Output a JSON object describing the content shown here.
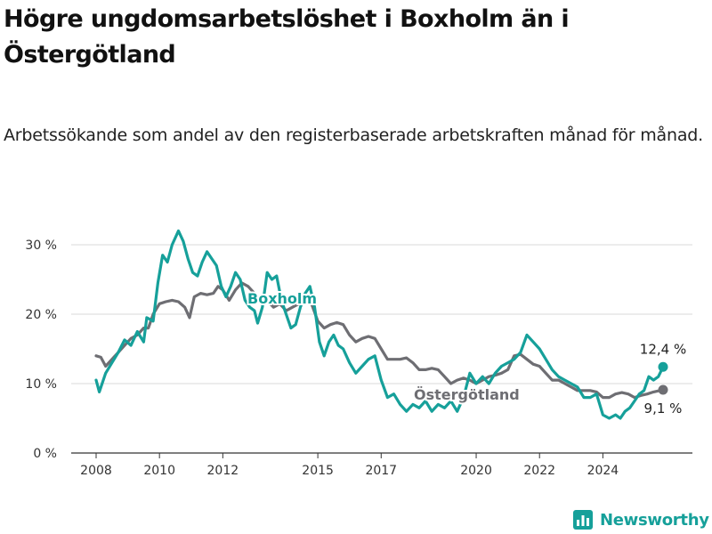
{
  "title": "Högre ungdomsarbetslöshet i Boxholm än i Östergötland",
  "subtitle": "Arbetssökande som andel av den registerbaserade arbetskraften månad för månad.",
  "brand": "Newsworthy",
  "colors": {
    "boxholm": "#16a09a",
    "ostergotland": "#6e6e73",
    "grid": "#d9d9d9",
    "axis": "#333333",
    "brand": "#16a09a"
  },
  "chart_data": {
    "type": "line",
    "title": "Högre ungdomsarbetslöshet i Boxholm än i Östergötland",
    "subtitle": "Arbetssökande som andel av den registerbaserade arbetskraften månad för månad.",
    "xlabel": "",
    "ylabel": "",
    "xlim": [
      2008,
      2025.1
    ],
    "ylim": [
      0,
      32
    ],
    "x_ticks": [
      2008,
      2010,
      2012,
      2015,
      2017,
      2020,
      2022,
      2024
    ],
    "x_tick_labels": [
      "2008",
      "2010",
      "2012",
      "2015",
      "2017",
      "2020",
      "2022",
      "2024"
    ],
    "y_ticks": [
      0,
      10,
      20,
      30
    ],
    "y_tick_labels": [
      "0 %",
      "10 %",
      "20 %",
      "30 %"
    ],
    "grid": "horizontal",
    "legend": "direct labels on lines",
    "series": [
      {
        "name": "Boxholm",
        "color": "#16a09a",
        "end_label": "12,4 %",
        "points": [
          [
            2008.0,
            10.5
          ],
          [
            2008.1,
            8.8
          ],
          [
            2008.3,
            11.5
          ],
          [
            2008.5,
            13.0
          ],
          [
            2008.7,
            14.5
          ],
          [
            2008.9,
            16.3
          ],
          [
            2009.1,
            15.5
          ],
          [
            2009.3,
            17.5
          ],
          [
            2009.5,
            16.0
          ],
          [
            2009.6,
            19.5
          ],
          [
            2009.8,
            19.0
          ],
          [
            2009.95,
            24.5
          ],
          [
            2010.1,
            28.5
          ],
          [
            2010.25,
            27.5
          ],
          [
            2010.4,
            30.0
          ],
          [
            2010.6,
            32.0
          ],
          [
            2010.75,
            30.5
          ],
          [
            2010.9,
            28.0
          ],
          [
            2011.05,
            26.0
          ],
          [
            2011.2,
            25.5
          ],
          [
            2011.35,
            27.5
          ],
          [
            2011.5,
            29.0
          ],
          [
            2011.65,
            28.0
          ],
          [
            2011.8,
            27.0
          ],
          [
            2011.95,
            24.0
          ],
          [
            2012.1,
            22.5
          ],
          [
            2012.25,
            24.0
          ],
          [
            2012.4,
            26.0
          ],
          [
            2012.55,
            25.0
          ],
          [
            2012.7,
            22.0
          ],
          [
            2012.85,
            21.0
          ],
          [
            2013.0,
            20.5
          ],
          [
            2013.1,
            18.7
          ],
          [
            2013.25,
            21.0
          ],
          [
            2013.4,
            26.0
          ],
          [
            2013.55,
            25.0
          ],
          [
            2013.7,
            25.5
          ],
          [
            2013.85,
            22.0
          ],
          [
            2014.0,
            20.0
          ],
          [
            2014.15,
            18.0
          ],
          [
            2014.3,
            18.5
          ],
          [
            2014.45,
            21.0
          ],
          [
            2014.6,
            23.0
          ],
          [
            2014.75,
            24.0
          ],
          [
            2014.9,
            21.0
          ],
          [
            2015.05,
            16.0
          ],
          [
            2015.2,
            14.0
          ],
          [
            2015.35,
            16.0
          ],
          [
            2015.5,
            17.0
          ],
          [
            2015.65,
            15.5
          ],
          [
            2015.8,
            15.0
          ],
          [
            2016.0,
            13.0
          ],
          [
            2016.2,
            11.5
          ],
          [
            2016.4,
            12.5
          ],
          [
            2016.6,
            13.5
          ],
          [
            2016.8,
            14.0
          ],
          [
            2017.0,
            10.5
          ],
          [
            2017.2,
            8.0
          ],
          [
            2017.4,
            8.5
          ],
          [
            2017.6,
            7.0
          ],
          [
            2017.8,
            6.0
          ],
          [
            2018.0,
            7.0
          ],
          [
            2018.2,
            6.5
          ],
          [
            2018.4,
            7.5
          ],
          [
            2018.6,
            6.0
          ],
          [
            2018.8,
            7.0
          ],
          [
            2019.0,
            6.5
          ],
          [
            2019.2,
            7.5
          ],
          [
            2019.4,
            6.0
          ],
          [
            2019.6,
            8.0
          ],
          [
            2019.8,
            11.5
          ],
          [
            2020.0,
            10.0
          ],
          [
            2020.2,
            11.0
          ],
          [
            2020.4,
            10.0
          ],
          [
            2020.6,
            11.5
          ],
          [
            2020.8,
            12.5
          ],
          [
            2021.0,
            13.0
          ],
          [
            2021.2,
            13.5
          ],
          [
            2021.4,
            14.5
          ],
          [
            2021.6,
            17.0
          ],
          [
            2021.8,
            16.0
          ],
          [
            2022.0,
            15.0
          ],
          [
            2022.2,
            13.5
          ],
          [
            2022.4,
            12.0
          ],
          [
            2022.6,
            11.0
          ],
          [
            2022.8,
            10.5
          ],
          [
            2023.0,
            10.0
          ],
          [
            2023.2,
            9.5
          ],
          [
            2023.4,
            8.0
          ],
          [
            2023.6,
            8.0
          ],
          [
            2023.8,
            8.5
          ],
          [
            2024.0,
            5.5
          ],
          [
            2024.2,
            5.0
          ],
          [
            2024.4,
            5.5
          ],
          [
            2024.55,
            5.0
          ],
          [
            2024.7,
            6.0
          ],
          [
            2024.85,
            6.5
          ],
          [
            2025.0,
            7.5
          ],
          [
            2025.15,
            8.5
          ],
          [
            2025.3,
            9.0
          ],
          [
            2025.45,
            11.0
          ],
          [
            2025.6,
            10.5
          ],
          [
            2025.75,
            11.0
          ],
          [
            2025.9,
            12.4
          ]
        ]
      },
      {
        "name": "Östergötland",
        "color": "#6e6e73",
        "end_label": "9,1 %",
        "points": [
          [
            2008.0,
            14.0
          ],
          [
            2008.15,
            13.8
          ],
          [
            2008.3,
            12.5
          ],
          [
            2008.5,
            13.5
          ],
          [
            2008.7,
            14.5
          ],
          [
            2008.9,
            15.5
          ],
          [
            2009.1,
            16.5
          ],
          [
            2009.3,
            17.0
          ],
          [
            2009.5,
            18.0
          ],
          [
            2009.65,
            18.0
          ],
          [
            2009.8,
            20.0
          ],
          [
            2010.0,
            21.5
          ],
          [
            2010.2,
            21.8
          ],
          [
            2010.4,
            22.0
          ],
          [
            2010.6,
            21.8
          ],
          [
            2010.8,
            21.0
          ],
          [
            2010.95,
            19.5
          ],
          [
            2011.1,
            22.5
          ],
          [
            2011.3,
            23.0
          ],
          [
            2011.5,
            22.8
          ],
          [
            2011.7,
            23.0
          ],
          [
            2011.85,
            24.0
          ],
          [
            2012.0,
            23.5
          ],
          [
            2012.2,
            22.0
          ],
          [
            2012.4,
            23.5
          ],
          [
            2012.6,
            24.5
          ],
          [
            2012.8,
            24.0
          ],
          [
            2013.0,
            23.0
          ],
          [
            2013.2,
            22.0
          ],
          [
            2013.4,
            22.0
          ],
          [
            2013.6,
            21.0
          ],
          [
            2013.8,
            21.5
          ],
          [
            2014.0,
            20.5
          ],
          [
            2014.2,
            21.0
          ],
          [
            2014.4,
            21.5
          ],
          [
            2014.6,
            22.0
          ],
          [
            2014.8,
            21.5
          ],
          [
            2015.0,
            19.0
          ],
          [
            2015.2,
            18.0
          ],
          [
            2015.4,
            18.5
          ],
          [
            2015.6,
            18.8
          ],
          [
            2015.8,
            18.5
          ],
          [
            2016.0,
            17.0
          ],
          [
            2016.2,
            16.0
          ],
          [
            2016.4,
            16.5
          ],
          [
            2016.6,
            16.8
          ],
          [
            2016.8,
            16.5
          ],
          [
            2017.0,
            15.0
          ],
          [
            2017.2,
            13.5
          ],
          [
            2017.4,
            13.5
          ],
          [
            2017.6,
            13.5
          ],
          [
            2017.8,
            13.7
          ],
          [
            2018.0,
            13.0
          ],
          [
            2018.2,
            12.0
          ],
          [
            2018.4,
            12.0
          ],
          [
            2018.6,
            12.2
          ],
          [
            2018.8,
            12.0
          ],
          [
            2019.0,
            11.0
          ],
          [
            2019.2,
            10.0
          ],
          [
            2019.4,
            10.5
          ],
          [
            2019.6,
            10.8
          ],
          [
            2019.8,
            10.5
          ],
          [
            2020.0,
            10.0
          ],
          [
            2020.2,
            10.5
          ],
          [
            2020.4,
            11.0
          ],
          [
            2020.6,
            11.2
          ],
          [
            2020.8,
            11.5
          ],
          [
            2021.0,
            12.0
          ],
          [
            2021.2,
            14.0
          ],
          [
            2021.4,
            14.2
          ],
          [
            2021.6,
            13.5
          ],
          [
            2021.8,
            12.8
          ],
          [
            2022.0,
            12.5
          ],
          [
            2022.2,
            11.5
          ],
          [
            2022.4,
            10.5
          ],
          [
            2022.6,
            10.5
          ],
          [
            2022.8,
            10.0
          ],
          [
            2023.0,
            9.5
          ],
          [
            2023.2,
            9.0
          ],
          [
            2023.4,
            9.0
          ],
          [
            2023.6,
            9.0
          ],
          [
            2023.8,
            8.8
          ],
          [
            2024.0,
            8.0
          ],
          [
            2024.2,
            8.0
          ],
          [
            2024.4,
            8.5
          ],
          [
            2024.6,
            8.7
          ],
          [
            2024.8,
            8.5
          ],
          [
            2025.0,
            8.0
          ],
          [
            2025.2,
            8.3
          ],
          [
            2025.4,
            8.5
          ],
          [
            2025.6,
            8.8
          ],
          [
            2025.9,
            9.1
          ]
        ]
      }
    ]
  }
}
